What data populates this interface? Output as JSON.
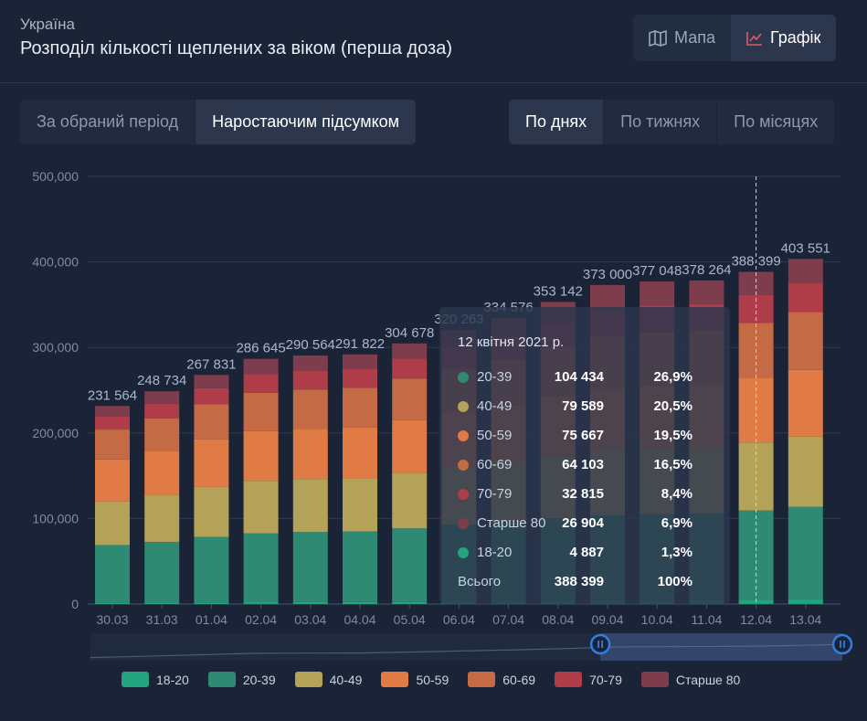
{
  "header": {
    "region": "Україна",
    "title": "Розподіл кількості щеплених за віком (перша доза)",
    "view_map": "Мапа",
    "view_chart": "Графік"
  },
  "mode_tabs": [
    "За обраний період",
    "Наростаючим підсумком"
  ],
  "period_tabs": [
    "По днях",
    "По тижнях",
    "По місяцях"
  ],
  "colors": {
    "background": "#1b2437",
    "18-20": "#23a47f",
    "20-39": "#2e8a72",
    "40-49": "#b3a257",
    "50-59": "#e17b45",
    "60-69": "#c46a45",
    "70-79": "#ae3d49",
    "Старше 80": "#7e3d4d"
  },
  "chart_data": {
    "type": "bar",
    "stacked": true,
    "ylim": [
      0,
      500000
    ],
    "y_ticks": [
      "0",
      "100,000",
      "200,000",
      "300,000",
      "400,000",
      "500,000"
    ],
    "categories": [
      "30.03",
      "31.03",
      "01.04",
      "02.04",
      "03.04",
      "04.04",
      "05.04",
      "06.04",
      "07.04",
      "08.04",
      "09.04",
      "10.04",
      "11.04",
      "12.04",
      "13.04"
    ],
    "total_labels": [
      "231 564",
      "248 734",
      "267 831",
      "286 645",
      "290 564",
      "291 822",
      "304 678",
      "320 263",
      "334 576",
      "353 142",
      "373 000",
      "377 048",
      "378 264",
      "388 399",
      "403 551"
    ],
    "series": [
      {
        "name": "18-20",
        "values": [
          1500,
          1700,
          1900,
          2100,
          2200,
          2300,
          2500,
          2800,
          3100,
          3400,
          3700,
          4000,
          4300,
          4887,
          5300
        ]
      },
      {
        "name": "20-39",
        "values": [
          67500,
          71000,
          76500,
          80500,
          82000,
          82500,
          86000,
          90000,
          93000,
          97000,
          100000,
          101000,
          101500,
          104434,
          108500
        ]
      },
      {
        "name": "40-49",
        "values": [
          51000,
          54500,
          58500,
          61500,
          62000,
          62500,
          65000,
          67500,
          70000,
          73000,
          76000,
          77000,
          77500,
          79589,
          82000
        ]
      },
      {
        "name": "50-59",
        "values": [
          49000,
          52000,
          55500,
          58000,
          58500,
          59000,
          61500,
          63500,
          66000,
          69500,
          72500,
          73500,
          74000,
          75667,
          78000
        ]
      },
      {
        "name": "60-69",
        "values": [
          35000,
          38000,
          41000,
          45000,
          46000,
          46500,
          48500,
          51500,
          54000,
          57000,
          61000,
          62000,
          62000,
          64103,
          67500
        ]
      },
      {
        "name": "70-79",
        "values": [
          15000,
          17000,
          19000,
          22000,
          22500,
          22600,
          23500,
          25000,
          26500,
          29000,
          31000,
          31500,
          31500,
          32815,
          34500
        ]
      },
      {
        "name": "Старше 80",
        "values": [
          12564,
          14534,
          15431,
          17545,
          17364,
          16422,
          17678,
          19963,
          21976,
          24242,
          28800,
          28048,
          27464,
          26904,
          27751
        ]
      }
    ],
    "legend": [
      "18-20",
      "20-39",
      "40-49",
      "50-59",
      "60-69",
      "70-79",
      "Старше 80"
    ],
    "legend_position": "bottom"
  },
  "tooltip": {
    "date": "12 квітня 2021 р.",
    "rows": [
      {
        "name": "20-39",
        "value": "104 434",
        "pct": "26,9%",
        "color": "#2e8a72"
      },
      {
        "name": "40-49",
        "value": "79 589",
        "pct": "20,5%",
        "color": "#b3a257"
      },
      {
        "name": "50-59",
        "value": "75 667",
        "pct": "19,5%",
        "color": "#e17b45"
      },
      {
        "name": "60-69",
        "value": "64 103",
        "pct": "16,5%",
        "color": "#c46a45"
      },
      {
        "name": "70-79",
        "value": "32 815",
        "pct": "8,4%",
        "color": "#ae3d49"
      },
      {
        "name": "Старше 80",
        "value": "26 904",
        "pct": "6,9%",
        "color": "#7e3d4d"
      },
      {
        "name": "18-20",
        "value": "4 887",
        "pct": "1,3%",
        "color": "#23a47f"
      }
    ],
    "total_label": "Всього",
    "total_value": "388 399",
    "total_pct": "100%"
  },
  "zoom": {
    "start_fraction": 0.7,
    "end_fraction": 1.0
  }
}
